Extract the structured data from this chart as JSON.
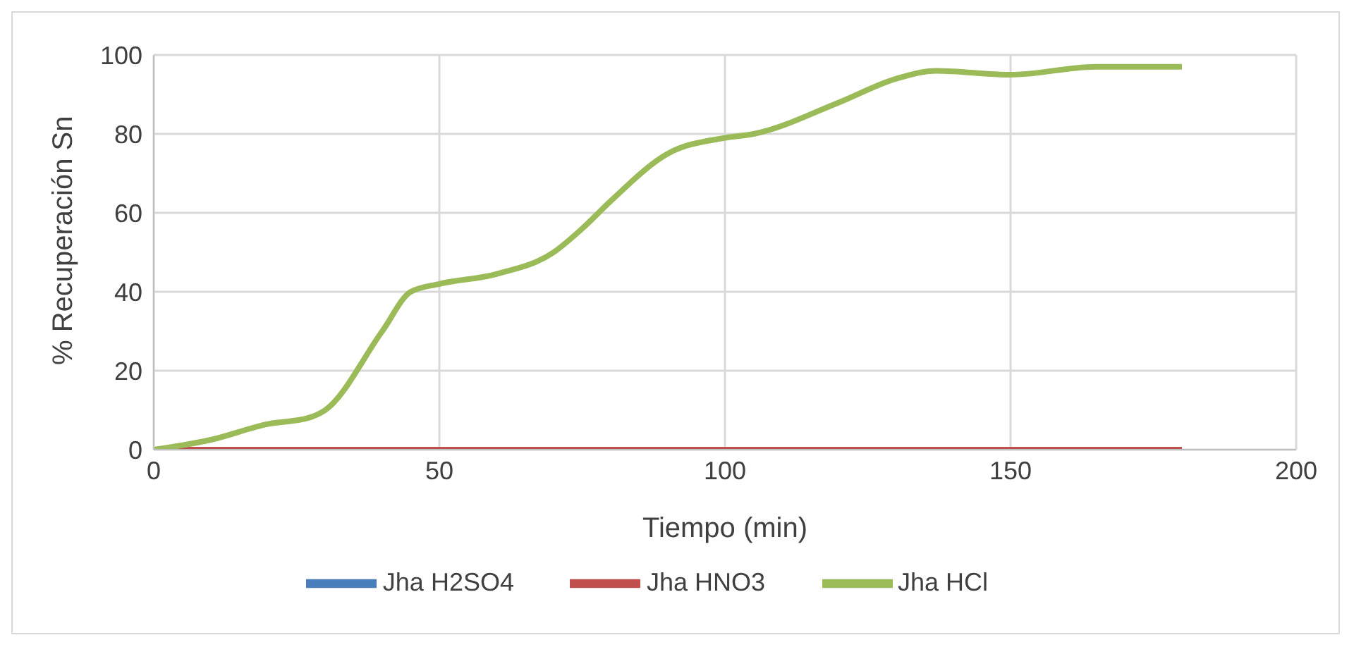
{
  "chart_data": {
    "type": "line",
    "xlabel": "Tiempo (min)",
    "ylabel": "% Recuperación Sn",
    "xlim": [
      0,
      200
    ],
    "xticks": [
      0,
      50,
      100,
      150,
      200
    ],
    "ylim": [
      0,
      100
    ],
    "yticks": [
      0,
      20,
      40,
      60,
      80,
      100
    ],
    "grid": true,
    "legend": "bottom",
    "marker": "none",
    "series": [
      {
        "name": "Jha H2SO4",
        "color": "#4a7ebb"
      },
      {
        "name": "Jha HNO3",
        "color": "#c0504d",
        "x": [
          0,
          30,
          60,
          90,
          120,
          150,
          180
        ],
        "values": [
          0,
          0,
          0,
          0,
          0,
          0,
          0
        ]
      },
      {
        "name": "Jha HCl",
        "color": "#9bbb59",
        "x": [
          0,
          10,
          20,
          27,
          30,
          40,
          45,
          50,
          60,
          70,
          75,
          80,
          90,
          100,
          105,
          120,
          130,
          137,
          150,
          165,
          180
        ],
        "values": [
          0,
          2.5,
          6.5,
          8,
          10,
          30,
          40,
          42,
          44.5,
          50,
          56,
          63,
          75,
          79,
          80,
          88,
          94,
          96,
          95,
          97,
          97
        ]
      }
    ]
  }
}
